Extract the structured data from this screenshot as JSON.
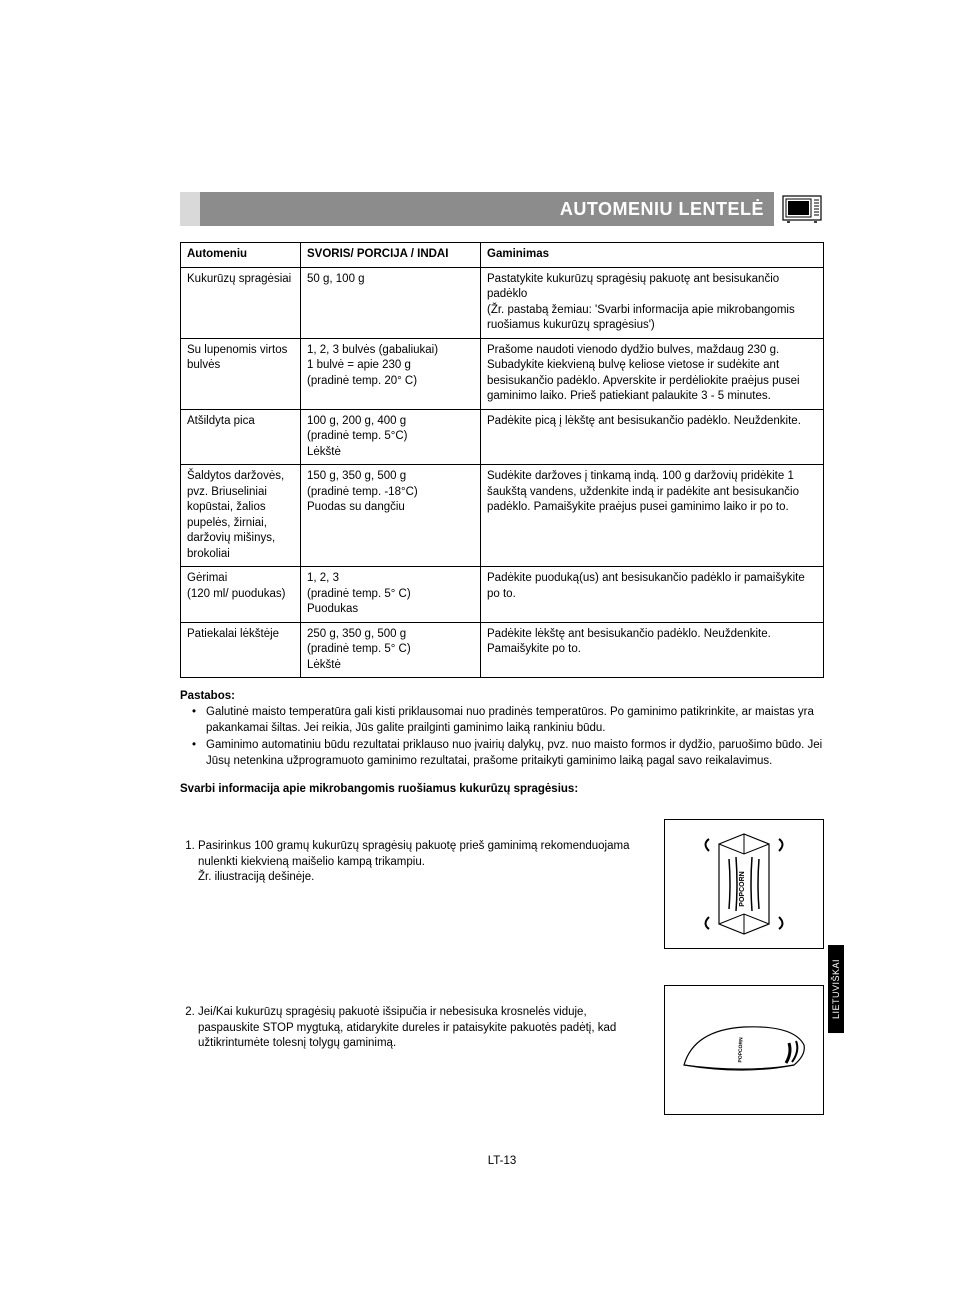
{
  "header": {
    "title": "AUTOMENIU LENTELĖ"
  },
  "table": {
    "headers": [
      "Automeniu",
      "SVORIS/ PORCIJA / INDAI",
      "Gaminimas"
    ],
    "rows": [
      [
        "Kukurūzų spragėsiai",
        "50 g, 100 g",
        "Pastatykite kukurūzų spragėsių pakuotę ant besisukančio padėklo\n(Žr. pastabą žemiau: 'Svarbi informacija apie mikrobangomis ruošiamus kukurūzų spragėsius')"
      ],
      [
        "Su lupenomis virtos bulvės",
        "1, 2, 3 bulvės (gabaliukai)\n1 bulvė = apie 230 g\n(pradinė temp. 20° C)",
        "Prašome naudoti vienodo dydžio bulves, maždaug 230 g. Subadykite kiekvieną bulvę keliose vietose ir sudėkite ant besisukančio padėklo. Apverskite ir perdėliokite praėjus pusei gaminimo laiko. Prieš patiekiant palaukite 3 - 5 minutes."
      ],
      [
        "Atšildyta pica",
        "100 g, 200 g, 400 g\n(pradinė temp. 5°C)\nLėkštė",
        "Padėkite picą į lėkštę ant besisukančio padėklo. Neuždenkite."
      ],
      [
        "Šaldytos daržovės, pvz. Briuseliniai kopūstai, žalios pupelės, žirniai, daržovių mišinys, brokoliai",
        "150 g, 350 g, 500 g\n(pradinė temp. -18°C)\nPuodas su dangčiu",
        "Sudėkite daržoves į tinkamą indą. 100 g daržovių pridėkite 1 šaukštą vandens, uždenkite indą ir padėkite ant besisukančio padėklo. Pamaišykite praėjus pusei gaminimo laiko ir po to."
      ],
      [
        "Gėrimai\n(120 ml/ puodukas)",
        "1, 2, 3\n(pradinė temp. 5° C)\nPuodukas",
        "Padėkite puoduką(us) ant besisukančio padėklo ir pamaišykite po to."
      ],
      [
        "Patiekalai lėkštėje",
        "250 g, 350 g, 500 g\n(pradinė temp. 5° C)\nLėkštė",
        "Padėkite lėkštę ant besisukančio padėklo. Neuždenkite. Pamaišykite po to."
      ]
    ]
  },
  "notes": {
    "label": "Pastabos:",
    "items": [
      "Galutinė maisto temperatūra gali kisti priklausomai nuo pradinės temperatūros. Po gaminimo patikrinkite, ar maistas yra pakankamai šiltas. Jei reikia, Jūs galite prailginti gaminimo laiką rankiniu būdu.",
      "Gaminimo automatiniu būdu rezultatai priklauso nuo įvairių dalykų, pvz. nuo maisto formos ir dydžio, paruošimo būdo. Jei Jūsų netenkina užprogramuoto gaminimo rezultatai, prašome pritaikyti gaminimo laiką pagal savo reikalavimus."
    ]
  },
  "important": {
    "title": "Svarbi informacija apie mikrobangomis ruošiamus kukurūzų spragėsius:",
    "items": [
      "Pasirinkus 100 gramų kukurūzų spragėsių pakuotę prieš gaminimą rekomenduojama nulenkti kiekvieną maišelio kampą trikampiu.\nŽr. iliustraciją dešinėje.",
      "Jei/Kai kukurūzų spragėsių pakuotė išsipučia ir nebesisuka krosnelės viduje, paspauskite STOP mygtuką, atidarykite dureles ir pataisykite pakuotės padėtį, kad užtikrintumėte tolesnį tolygų gaminimą."
    ]
  },
  "sideTab": "LIETUVIŠKAI",
  "pageNumber": "LT-13"
}
